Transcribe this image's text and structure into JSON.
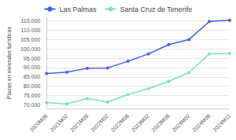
{
  "chart_data": {
    "type": "line",
    "y_label": "Plazas en viviendas turísticas",
    "categories": [
      "2020M08",
      "2021M02",
      "2021M08",
      "2022M02",
      "2022M08",
      "2023M02",
      "2023M08",
      "2024M02",
      "2024M08",
      "2024M11"
    ],
    "series": [
      {
        "name": "Las Palmas",
        "color": "#3d5ef0",
        "marker": "circle",
        "values": [
          86800,
          87500,
          89600,
          89800,
          93400,
          97300,
          102300,
          105100,
          114800,
          115400
        ]
      },
      {
        "name": "Santa Cruz de Tenerife",
        "color": "#80e0c4",
        "marker": "circle",
        "values": [
          71200,
          70500,
          73400,
          71500,
          75500,
          78700,
          82600,
          87300,
          97400,
          97600
        ]
      }
    ],
    "ylim": [
      68000,
      117000
    ],
    "yticks": [
      {
        "value": 70000,
        "label": "70.000"
      },
      {
        "value": 75000,
        "label": "75.000"
      },
      {
        "value": 80000,
        "label": "80.000"
      },
      {
        "value": 85000,
        "label": "85.000"
      },
      {
        "value": 90000,
        "label": "90.000"
      },
      {
        "value": 95000,
        "label": "95.000"
      },
      {
        "value": 100000,
        "label": "100.000"
      },
      {
        "value": 105000,
        "label": "105.000"
      },
      {
        "value": 110000,
        "label": "110.000"
      },
      {
        "value": 115000,
        "label": "115.000"
      }
    ],
    "grid": true,
    "legend": "top"
  }
}
